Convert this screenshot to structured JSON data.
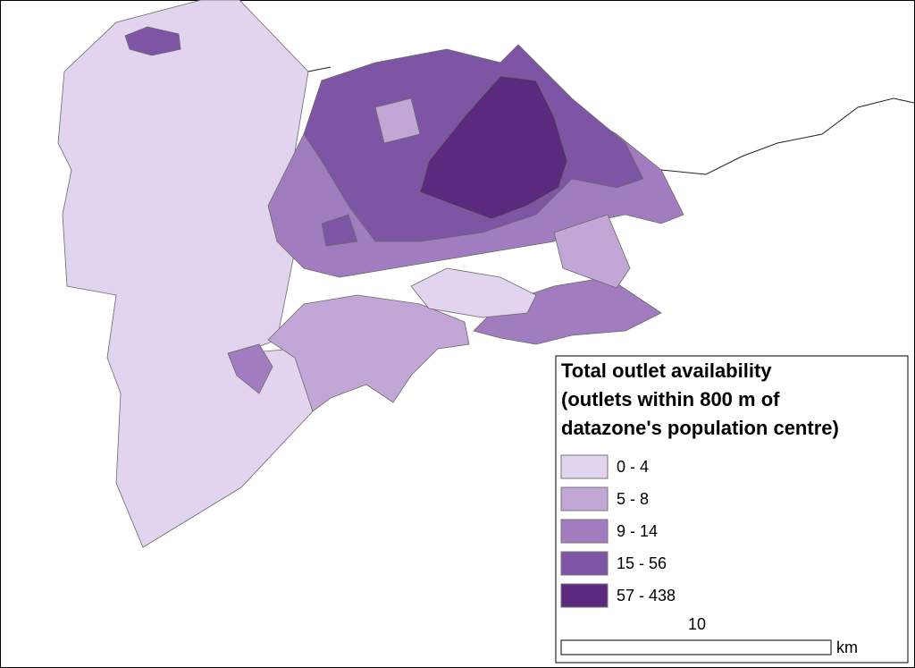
{
  "legend": {
    "title_lines": [
      "Total outlet availability",
      "(outlets within 800 m of",
      "datazone's population centre)"
    ],
    "items": [
      {
        "label": "0 - 4",
        "color": "#e2d4ee"
      },
      {
        "label": "5 - 8",
        "color": "#c2a6d6"
      },
      {
        "label": "9 - 14",
        "color": "#a17dc0"
      },
      {
        "label": "15 - 56",
        "color": "#7e55a5"
      },
      {
        "label": "57 - 438",
        "color": "#5b2a7e"
      }
    ]
  },
  "scale_bar": {
    "label": "10",
    "unit": "km"
  }
}
